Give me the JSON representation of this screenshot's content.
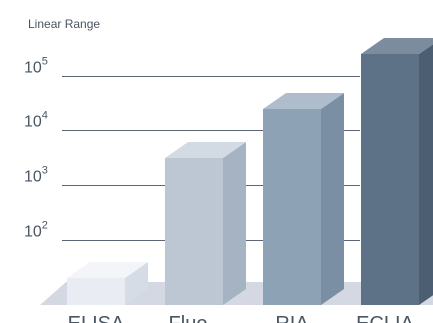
{
  "chart_data": {
    "type": "bar",
    "ylabel": "Linear Range",
    "categories": [
      "ELISA",
      "Fluo",
      "RIA",
      "ECLIA"
    ],
    "values": [
      1.3,
      3.5,
      4.4,
      5.4
    ],
    "value_scale": "log10 exponent",
    "ylim": [
      0.6,
      5.6
    ],
    "y_ticks": [
      {
        "value": 2,
        "base": "10",
        "exp": "2"
      },
      {
        "value": 3,
        "base": "10",
        "exp": "3"
      },
      {
        "value": 4,
        "base": "10",
        "exp": "4"
      },
      {
        "value": 5,
        "base": "10",
        "exp": "5"
      }
    ],
    "grid": true,
    "legend": "none",
    "colors": {
      "bars": [
        "#e9edf3",
        "#bcc7d3",
        "#8ea2b6",
        "#5e7287"
      ],
      "bar_sides": [
        "#d6dce6",
        "#a6b3c2",
        "#7a8fa4",
        "#4b5e72"
      ],
      "bar_tops": [
        "#f3f5f9",
        "#d2dae4",
        "#aebccb",
        "#7a8c9e"
      ],
      "floor": "#d3d8e3",
      "grid": "#5a6675",
      "text": "#4a5563"
    }
  }
}
